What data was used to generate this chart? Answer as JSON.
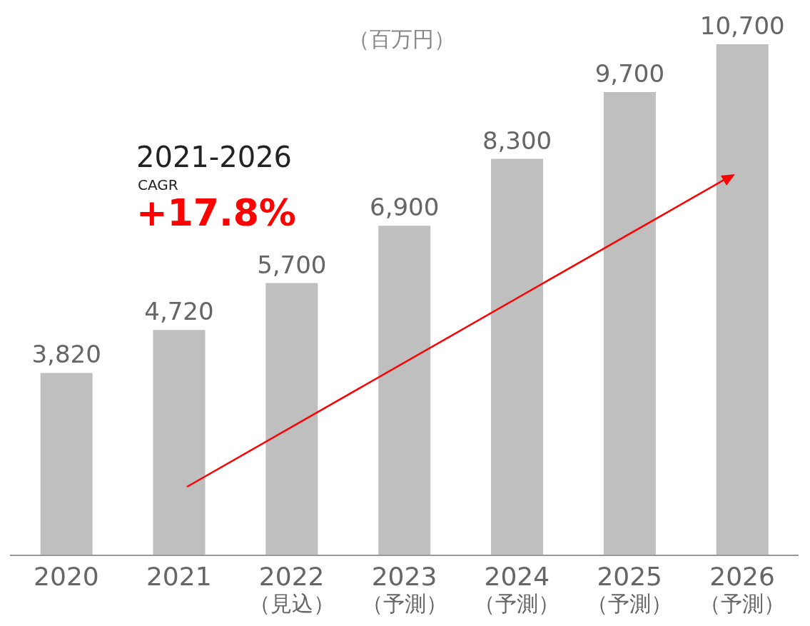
{
  "chart_data": {
    "type": "bar",
    "categories": [
      "2020",
      "2021",
      "2022\n（見込）",
      "2023\n（予測）",
      "2024\n（予測）",
      "2025\n（予測）",
      "2026\n（予測）"
    ],
    "values": [
      3820,
      4720,
      5700,
      6900,
      8300,
      9700,
      10700
    ],
    "color": "#bfbfbf",
    "value_labels": [
      "3,820",
      "4,720",
      "5,700",
      "6,900",
      "8,300",
      "9,700",
      "10,700"
    ],
    "annotations": [
      "（百万円）",
      "2021-2026",
      "CAGR",
      "+17.8%"
    ]
  }
}
